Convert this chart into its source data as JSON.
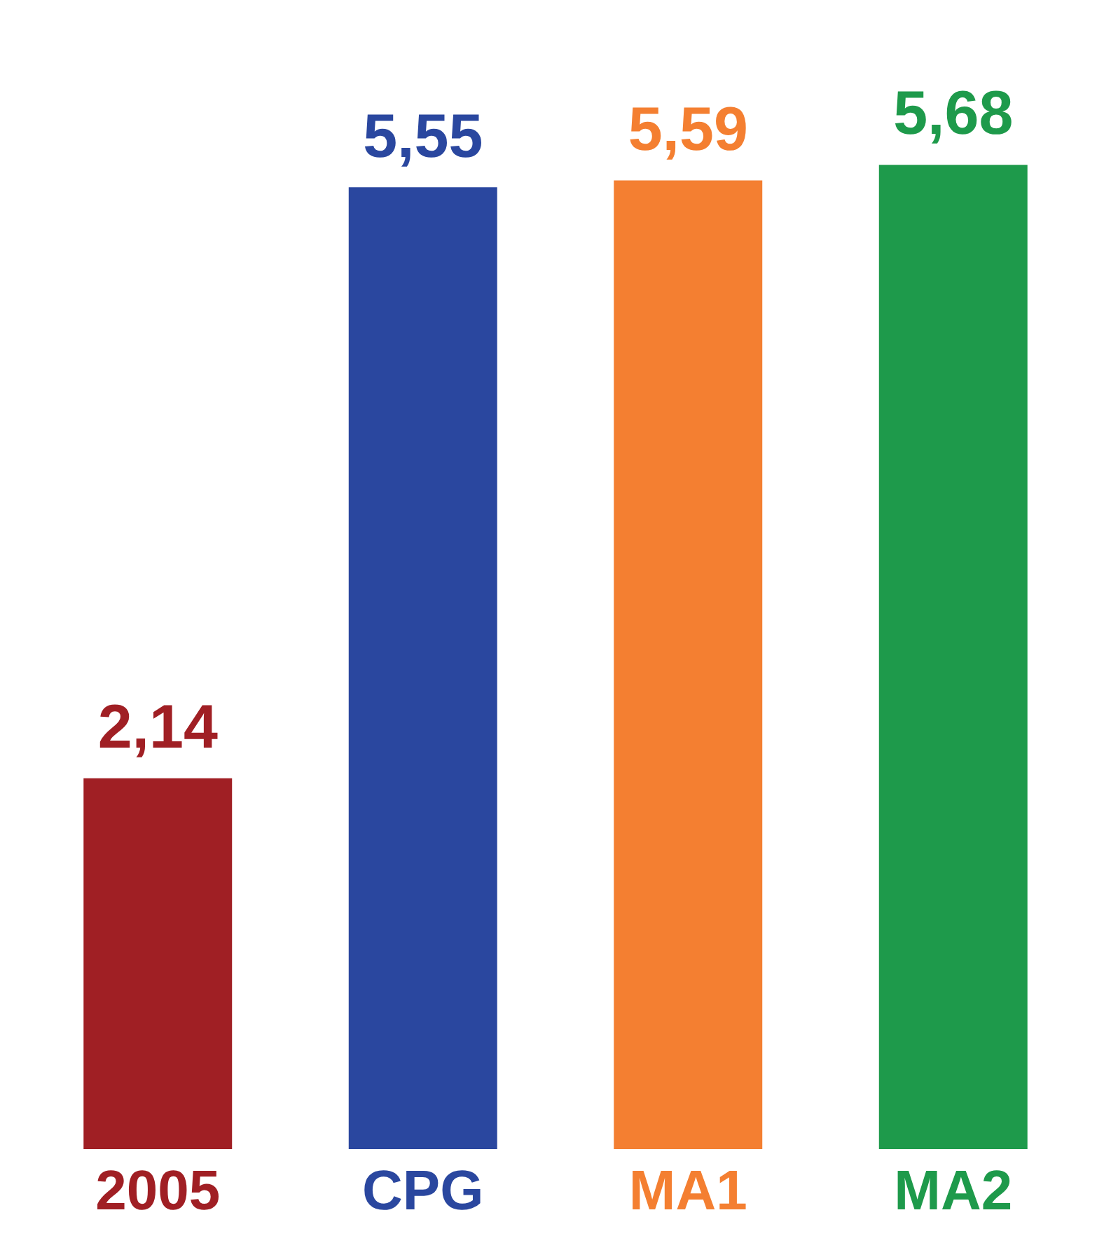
{
  "chart_data": {
    "type": "bar",
    "categories": [
      "2005",
      "CPG",
      "MA1",
      "MA2"
    ],
    "values": [
      2.14,
      5.55,
      5.59,
      5.68
    ],
    "colors": [
      "#a01f24",
      "#2a479f",
      "#f47f31",
      "#1e9a4b"
    ],
    "value_labels": [
      "2,14",
      "5,55",
      "5,59",
      "5,68"
    ],
    "grid": false,
    "legend": false
  }
}
